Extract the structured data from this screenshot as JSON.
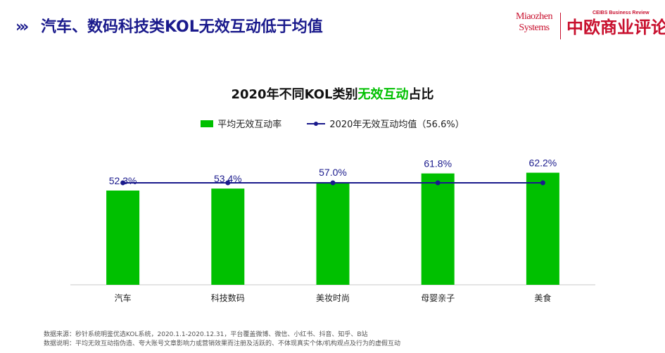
{
  "header": {
    "title": "汽车、数码科技类KOL无效互动低于均值",
    "logo_line1": "Miaozhen",
    "logo_line2": "Systems",
    "logo_en": "CEIBS Business Review",
    "logo_cn": "中欧商业评论"
  },
  "chart_data": {
    "type": "bar",
    "title_parts": [
      "2020年不同KOL类别",
      "无效互动",
      "占比"
    ],
    "categories": [
      "汽车",
      "科技数码",
      "美妆时尚",
      "母婴亲子",
      "美食"
    ],
    "series": [
      {
        "name": "平均无效互动率",
        "values": [
          52.3,
          53.4,
          57.0,
          61.8,
          62.2
        ],
        "labels": [
          "52.3%",
          "53.4%",
          "57.0%",
          "61.8%",
          "62.2%"
        ],
        "color": "#00c000"
      },
      {
        "name": "2020年无效互动均值（56.6%）",
        "type": "line",
        "value": 56.6,
        "color": "#1a1a8c"
      }
    ],
    "ylim": [
      0,
      80
    ],
    "grid": false,
    "legend_position": "top"
  },
  "notes": {
    "line1": "数据来源：秒针系统明鉴优选KOL系统，2020.1.1-2020.12.31，平台覆盖微博、微信、小红书、抖音、知乎、B站",
    "line2": "数据说明：平均无效互动指伪造、夸大账号文章影响力或营销效果而注册及活跃的、不体现真实个体/机构观点及行为的虚假互动"
  }
}
